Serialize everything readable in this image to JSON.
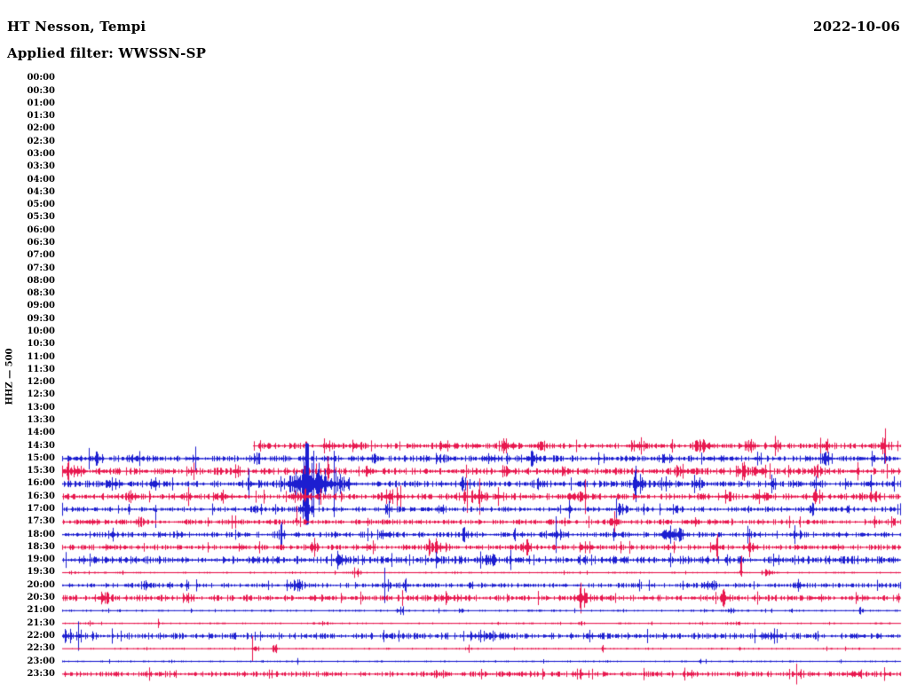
{
  "header": {
    "station_title": "HT Nesson, Tempi",
    "filter_label": "Applied filter: WWSSN-SP",
    "date": "2022-10-06"
  },
  "axis": {
    "channel_label": "HHZ — 500",
    "time_labels": [
      "00:00",
      "00:30",
      "01:00",
      "01:30",
      "02:00",
      "02:30",
      "03:00",
      "03:30",
      "04:00",
      "04:30",
      "05:00",
      "05:30",
      "06:00",
      "06:30",
      "07:00",
      "07:30",
      "08:00",
      "08:30",
      "09:00",
      "09:30",
      "10:00",
      "10:30",
      "11:00",
      "11:30",
      "12:00",
      "12:30",
      "13:00",
      "13:30",
      "14:00",
      "14:30",
      "15:00",
      "15:30",
      "16:00",
      "16:30",
      "17:00",
      "17:30",
      "18:00",
      "18:30",
      "19:00",
      "19:30",
      "20:00",
      "20:30",
      "21:00",
      "21:30",
      "22:00",
      "22:30",
      "23:00",
      "23:30"
    ]
  },
  "colors": {
    "red": "#E8174E",
    "blue": "#1C1ED0",
    "text": "#000000",
    "background": "#FFFFFF"
  },
  "chart_data": {
    "type": "line",
    "subtype": "helicorder-day-plot",
    "title": "HT Nesson, Tempi",
    "date": "2022-10-06",
    "filter": "WWSSN-SP",
    "channel": "HHZ",
    "scale": 500,
    "row_duration_minutes": 30,
    "data_begins_at_row": "14:30",
    "legend": "rows alternate red/blue per half hour; rows 00:00-14:00 contain no data",
    "main_event": {
      "row": "16:00",
      "position_frac": 0.2915,
      "description": "large clipped burst crossing adjacent rows"
    },
    "rows": [
      {
        "time": "14:30",
        "color": "red",
        "start_frac": 0.228,
        "base": 1.6,
        "events": [
          [
            0.291,
            5,
            2,
            1
          ],
          [
            0.318,
            3,
            14,
            0
          ],
          [
            0.35,
            2.5,
            10,
            0
          ],
          [
            0.455,
            3,
            12,
            0
          ],
          [
            0.53,
            3,
            10,
            0
          ],
          [
            0.57,
            3,
            8,
            0
          ],
          [
            0.688,
            3.5,
            16,
            0
          ],
          [
            0.763,
            3,
            12,
            0
          ],
          [
            0.82,
            3,
            10,
            0
          ],
          [
            0.839,
            6,
            2,
            0
          ],
          [
            0.851,
            3,
            8,
            0
          ],
          [
            0.911,
            3,
            10,
            0
          ],
          [
            0.98,
            3,
            8,
            0
          ]
        ]
      },
      {
        "time": "15:00",
        "color": "blue",
        "start_frac": 0,
        "base": 1.7,
        "events": [
          [
            0.04,
            2.5,
            12,
            0
          ],
          [
            0.09,
            2.5,
            10,
            0
          ],
          [
            0.154,
            2.5,
            8,
            0
          ],
          [
            0.23,
            2.5,
            10,
            0
          ],
          [
            0.37,
            2.5,
            8,
            0
          ],
          [
            0.45,
            2.5,
            8,
            0
          ],
          [
            0.512,
            3,
            10,
            0
          ],
          [
            0.56,
            3,
            14,
            0
          ],
          [
            0.64,
            2.5,
            8,
            0
          ],
          [
            0.72,
            3,
            10,
            0
          ],
          [
            0.83,
            3,
            8,
            0
          ],
          [
            0.911,
            4,
            10,
            0
          ],
          [
            0.97,
            3,
            8,
            0
          ]
        ]
      },
      {
        "time": "15:30",
        "color": "red",
        "start_frac": 0,
        "base": 1.8,
        "events": [
          [
            0.005,
            4,
            10,
            0
          ],
          [
            0.02,
            3,
            8,
            0
          ],
          [
            0.154,
            3,
            8,
            0
          ],
          [
            0.21,
            3,
            8,
            0
          ],
          [
            0.291,
            2.5,
            6,
            0
          ],
          [
            0.318,
            3,
            8,
            0
          ],
          [
            0.365,
            3.5,
            6,
            0
          ],
          [
            0.53,
            3,
            10,
            0
          ],
          [
            0.6,
            2.5,
            8,
            0
          ],
          [
            0.74,
            3,
            16,
            0
          ],
          [
            0.81,
            3,
            10,
            0
          ],
          [
            0.831,
            4.5,
            12,
            0
          ],
          [
            0.9,
            2.5,
            8,
            0
          ],
          [
            0.943,
            3,
            6,
            0
          ]
        ]
      },
      {
        "time": "16:00",
        "color": "blue",
        "start_frac": 0,
        "base": 1.8,
        "events": [
          [
            0.06,
            2.5,
            10,
            0
          ],
          [
            0.11,
            2.5,
            8,
            0
          ],
          [
            0.225,
            3,
            10,
            0
          ],
          [
            0.2915,
            18,
            26,
            0
          ],
          [
            0.2915,
            44,
            3,
            0
          ],
          [
            0.315,
            6,
            40,
            0
          ],
          [
            0.48,
            3,
            10,
            0
          ],
          [
            0.57,
            3,
            8,
            0
          ],
          [
            0.688,
            9,
            9,
            0
          ],
          [
            0.72,
            4,
            8,
            0
          ],
          [
            0.757,
            4,
            6,
            0
          ],
          [
            0.847,
            5,
            6,
            0
          ],
          [
            0.9,
            3,
            8,
            0
          ],
          [
            0.964,
            4,
            6,
            0
          ]
        ]
      },
      {
        "time": "16:30",
        "color": "red",
        "start_frac": 0,
        "base": 1.8,
        "events": [
          [
            0.085,
            3,
            8,
            0
          ],
          [
            0.143,
            3,
            10,
            0
          ],
          [
            0.191,
            3,
            14,
            0
          ],
          [
            0.279,
            3.5,
            10,
            0
          ],
          [
            0.291,
            4,
            8,
            0
          ],
          [
            0.387,
            4.5,
            10,
            0
          ],
          [
            0.403,
            4,
            6,
            0
          ],
          [
            0.48,
            4,
            8,
            0
          ],
          [
            0.498,
            5.5,
            12,
            0
          ],
          [
            0.522,
            4,
            6,
            0
          ],
          [
            0.62,
            3,
            8,
            0
          ],
          [
            0.79,
            3,
            12,
            0
          ],
          [
            0.831,
            4.5,
            8,
            0
          ],
          [
            0.9,
            3,
            8,
            0
          ],
          [
            0.97,
            3,
            6,
            0
          ]
        ]
      },
      {
        "time": "17:00",
        "color": "blue",
        "start_frac": 0,
        "base": 1.4,
        "events": [
          [
            0.111,
            7,
            2,
            -1
          ],
          [
            0.23,
            2.5,
            8,
            0
          ],
          [
            0.291,
            7,
            8,
            0
          ],
          [
            0.39,
            2.5,
            8,
            0
          ],
          [
            0.45,
            2.5,
            8,
            0
          ],
          [
            0.604,
            3,
            6,
            0
          ],
          [
            0.667,
            2.5,
            10,
            0
          ],
          [
            0.73,
            3,
            8,
            0
          ],
          [
            0.895,
            3,
            6,
            0
          ],
          [
            0.937,
            2.5,
            6,
            0
          ]
        ]
      },
      {
        "time": "17:30",
        "color": "red",
        "start_frac": 0,
        "base": 1.4,
        "events": [
          [
            0.03,
            2.5,
            10,
            0
          ],
          [
            0.09,
            2.5,
            8,
            0
          ],
          [
            0.205,
            2.5,
            10,
            0
          ],
          [
            0.279,
            9,
            2,
            1
          ],
          [
            0.36,
            2,
            8,
            0
          ],
          [
            0.583,
            2.5,
            6,
            0
          ],
          [
            0.657,
            3,
            6,
            0
          ],
          [
            0.757,
            3,
            6,
            0
          ],
          [
            0.779,
            3,
            5,
            0
          ],
          [
            0.897,
            3.5,
            4,
            0
          ],
          [
            0.99,
            3,
            5,
            0
          ]
        ]
      },
      {
        "time": "18:00",
        "color": "blue",
        "start_frac": 0,
        "base": 1.5,
        "events": [
          [
            0.06,
            2.5,
            8,
            0
          ],
          [
            0.14,
            2.5,
            8,
            0
          ],
          [
            0.26,
            2.5,
            10,
            0
          ],
          [
            0.387,
            5,
            8,
            0
          ],
          [
            0.48,
            4,
            8,
            0
          ],
          [
            0.59,
            3,
            12,
            0
          ],
          [
            0.73,
            4,
            22,
            0
          ],
          [
            0.819,
            4.5,
            6,
            0
          ],
          [
            0.874,
            3.5,
            8,
            0
          ]
        ]
      },
      {
        "time": "18:30",
        "color": "red",
        "start_frac": 0,
        "base": 1.5,
        "events": [
          [
            0.053,
            3,
            6,
            0
          ],
          [
            0.207,
            3,
            6,
            0
          ],
          [
            0.3,
            2.5,
            8,
            0
          ],
          [
            0.365,
            4,
            10,
            0
          ],
          [
            0.45,
            3.5,
            14,
            0
          ],
          [
            0.554,
            7,
            6,
            0
          ],
          [
            0.625,
            3,
            8,
            0
          ],
          [
            0.779,
            5,
            8,
            0
          ],
          [
            0.82,
            3.5,
            6,
            0
          ],
          [
            0.921,
            2.5,
            6,
            0
          ]
        ]
      },
      {
        "time": "19:00",
        "color": "blue",
        "start_frac": 0,
        "base": 2.2,
        "events": [
          [
            0.334,
            3.5,
            8,
            0
          ],
          [
            0.512,
            3.5,
            8,
            0
          ],
          [
            0.851,
            3,
            6,
            0
          ]
        ]
      },
      {
        "time": "19:30",
        "color": "red",
        "start_frac": 0,
        "base": 0.5,
        "events": [
          [
            0.35,
            2.5,
            8,
            0
          ],
          [
            0.81,
            9,
            2,
            1
          ],
          [
            0.842,
            4,
            8,
            0
          ],
          [
            0.903,
            1.5,
            4,
            0
          ]
        ]
      },
      {
        "time": "20:00",
        "color": "blue",
        "start_frac": 0,
        "base": 1.3,
        "events": [
          [
            0.1,
            3.5,
            8,
            0
          ],
          [
            0.148,
            4,
            3,
            0
          ],
          [
            0.28,
            2.5,
            12,
            0
          ],
          [
            0.387,
            3.5,
            8,
            0
          ],
          [
            0.408,
            3,
            6,
            0
          ],
          [
            0.487,
            3,
            6,
            0
          ],
          [
            0.773,
            4,
            8,
            0
          ],
          [
            0.88,
            2,
            10,
            0
          ]
        ]
      },
      {
        "time": "20:30",
        "color": "red",
        "start_frac": 0,
        "base": 1.7,
        "events": [
          [
            0.05,
            2.5,
            10,
            0
          ],
          [
            0.15,
            2.5,
            8,
            0
          ],
          [
            0.3,
            2.5,
            8,
            0
          ],
          [
            0.46,
            2.5,
            8,
            0
          ],
          [
            0.62,
            6.5,
            10,
            0
          ],
          [
            0.792,
            4.5,
            8,
            0
          ],
          [
            0.903,
            2.5,
            5,
            0
          ]
        ]
      },
      {
        "time": "21:00",
        "color": "blue",
        "start_frac": 0,
        "base": 0.6,
        "events": [
          [
            0.403,
            2,
            6,
            0
          ],
          [
            0.797,
            2.5,
            5,
            0
          ],
          [
            0.869,
            1.5,
            4,
            0
          ],
          [
            0.951,
            2.5,
            5,
            0
          ]
        ]
      },
      {
        "time": "21:30",
        "color": "red",
        "start_frac": 0,
        "base": 0.5,
        "events": [
          [
            0.03,
            1.5,
            6,
            0
          ],
          [
            0.114,
            2,
            2,
            0
          ],
          [
            0.31,
            2.5,
            8,
            0
          ],
          [
            0.62,
            1.2,
            4,
            0
          ],
          [
            0.8,
            1.5,
            8,
            0
          ]
        ]
      },
      {
        "time": "22:00",
        "color": "blue",
        "start_frac": 0,
        "base": 1.8,
        "events": [
          [
            0.005,
            4,
            8,
            0
          ],
          [
            0.02,
            3,
            6,
            0
          ],
          [
            0.5,
            2.5,
            20,
            0
          ],
          [
            0.63,
            2.5,
            8,
            0
          ],
          [
            0.85,
            2.5,
            14,
            0
          ]
        ]
      },
      {
        "time": "22:30",
        "color": "red",
        "start_frac": 0,
        "base": 0.5,
        "events": [
          [
            0.228,
            2.5,
            5,
            0
          ],
          [
            0.254,
            2,
            4,
            0
          ],
          [
            0.487,
            2,
            8,
            0
          ],
          [
            0.646,
            1.5,
            4,
            0
          ]
        ]
      },
      {
        "time": "23:00",
        "color": "blue",
        "start_frac": 0,
        "base": 0.5,
        "events": [
          [
            0.127,
            1.5,
            5,
            0
          ],
          [
            0.28,
            1.5,
            4,
            0
          ],
          [
            0.76,
            1.5,
            8,
            0
          ]
        ]
      },
      {
        "time": "23:30",
        "color": "red",
        "start_frac": 0,
        "base": 1.5,
        "events": [
          [
            0.1,
            2,
            6,
            0
          ],
          [
            0.25,
            2,
            6,
            0
          ],
          [
            0.45,
            2.2,
            8,
            0
          ],
          [
            0.55,
            2.5,
            8,
            0
          ],
          [
            0.62,
            2.5,
            10,
            0
          ],
          [
            0.75,
            2,
            8,
            0
          ],
          [
            0.88,
            2.5,
            8,
            0
          ],
          [
            0.95,
            2.5,
            6,
            0
          ]
        ]
      }
    ]
  }
}
